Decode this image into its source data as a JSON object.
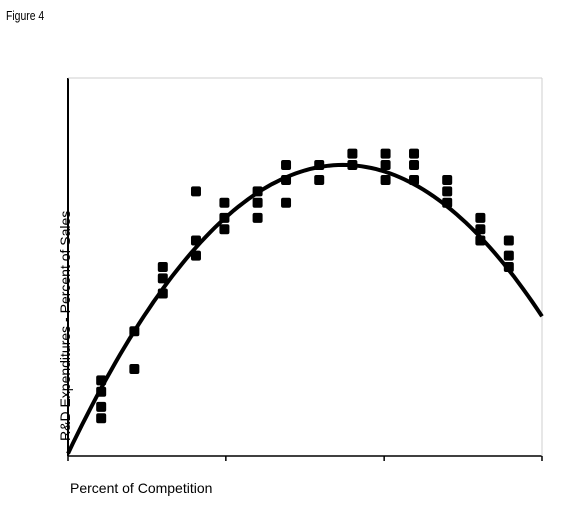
{
  "figure_label": "Figure 4",
  "chart_data": {
    "type": "scatter",
    "xlabel": "Percent of Competition",
    "ylabel": "R&D Expenditures - Percent of Sales",
    "xlim": [
      0,
      100
    ],
    "ylim": [
      0,
      100
    ],
    "x_ticks": [
      0,
      33.3,
      66.7,
      100
    ],
    "tick_labels": "none",
    "grid": false,
    "points": [
      {
        "x": 7,
        "y": 20
      },
      {
        "x": 7,
        "y": 17
      },
      {
        "x": 7,
        "y": 13
      },
      {
        "x": 7,
        "y": 10
      },
      {
        "x": 14,
        "y": 33
      },
      {
        "x": 14,
        "y": 23
      },
      {
        "x": 20,
        "y": 50
      },
      {
        "x": 20,
        "y": 47
      },
      {
        "x": 20,
        "y": 43
      },
      {
        "x": 27,
        "y": 70
      },
      {
        "x": 27,
        "y": 57
      },
      {
        "x": 27,
        "y": 53
      },
      {
        "x": 33,
        "y": 67
      },
      {
        "x": 33,
        "y": 63
      },
      {
        "x": 33,
        "y": 60
      },
      {
        "x": 40,
        "y": 70
      },
      {
        "x": 40,
        "y": 67
      },
      {
        "x": 40,
        "y": 63
      },
      {
        "x": 46,
        "y": 77
      },
      {
        "x": 46,
        "y": 73
      },
      {
        "x": 46,
        "y": 67
      },
      {
        "x": 53,
        "y": 77
      },
      {
        "x": 53,
        "y": 73
      },
      {
        "x": 60,
        "y": 80
      },
      {
        "x": 60,
        "y": 77
      },
      {
        "x": 67,
        "y": 80
      },
      {
        "x": 67,
        "y": 77
      },
      {
        "x": 67,
        "y": 73
      },
      {
        "x": 73,
        "y": 80
      },
      {
        "x": 73,
        "y": 77
      },
      {
        "x": 73,
        "y": 73
      },
      {
        "x": 80,
        "y": 73
      },
      {
        "x": 80,
        "y": 70
      },
      {
        "x": 80,
        "y": 67
      },
      {
        "x": 87,
        "y": 63
      },
      {
        "x": 87,
        "y": 60
      },
      {
        "x": 87,
        "y": 57
      },
      {
        "x": 93,
        "y": 57
      },
      {
        "x": 93,
        "y": 53
      },
      {
        "x": 93,
        "y": 50
      }
    ],
    "trendline": {
      "type": "quadratic",
      "vertex": [
        58,
        77
      ],
      "coef": -0.0227
    }
  }
}
